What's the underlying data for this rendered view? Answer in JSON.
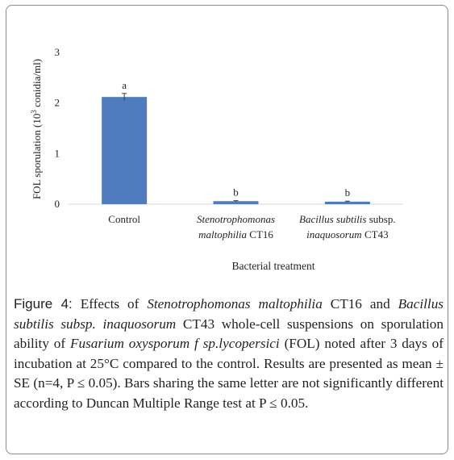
{
  "chart_data": {
    "type": "bar",
    "categories": [
      "Control",
      "Stenotrophomonas maltophilia CT16",
      "Bacillus subtilis subsp. inaquosorum CT43"
    ],
    "category_labels": [
      {
        "line1_italic": "Control",
        "line1_plain": "",
        "line2_italic": "",
        "line2_plain": "",
        "italic_first": false
      },
      {
        "line1_italic": "Stenotrophomonas",
        "line1_plain": "",
        "line2_italic": "maltophilia",
        "line2_plain": " CT16"
      },
      {
        "line1_italic": "Bacillus subtilis",
        "line1_plain": " subsp.",
        "line2_italic": "inaquosorum",
        "line2_plain": " CT43"
      }
    ],
    "values": [
      2.12,
      0.06,
      0.05
    ],
    "errors": [
      0.07,
      0.01,
      0.01
    ],
    "letters": [
      "a",
      "b",
      "b"
    ],
    "ylim": [
      0,
      3
    ],
    "yticks": [
      0,
      1,
      2,
      3
    ],
    "xlabel": "Bacterial treatment",
    "ylabel_prefix": "FOL sporulation (10",
    "ylabel_sup": "3",
    "ylabel_suffix": " conidia/ml)",
    "bar_color": "#4f7cbe",
    "grid": false
  },
  "caption": {
    "label": "Figure 4:",
    "t1": " Effects of ",
    "i1": "Stenotrophomonas maltophilia",
    "t2": " CT16 and ",
    "i2": "Bacillus subtilis subsp. inaquosorum",
    "t3": " CT43 whole-cell suspensions on sporulation ability of ",
    "i3": "Fusarium oxysporum f sp.lycopersici",
    "t4": " (FOL) noted after 3 days of incubation at 25°C compared to the control. Results are presented as mean ± SE (n=4, P ≤ 0.05). Bars sharing the same letter are not significantly different according to Duncan Multiple Range test at P ≤ 0.05."
  }
}
